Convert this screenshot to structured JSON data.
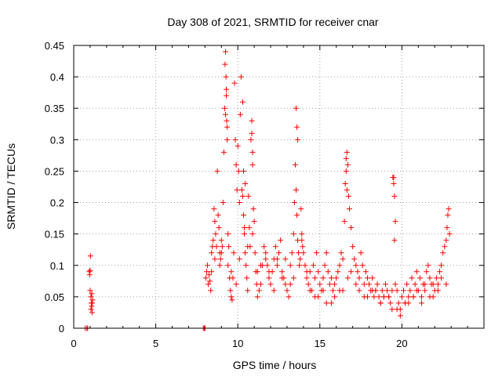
{
  "chart_data": {
    "type": "scatter",
    "title": "Day 308 of 2021, SRMTID for receiver cnar",
    "xlabel": "GPS time / hours",
    "ylabel": "SRMTID / TECUs",
    "xlim": [
      0,
      25
    ],
    "ylim": [
      0,
      0.45
    ],
    "xticks": [
      0,
      5,
      10,
      15,
      20
    ],
    "yticks": [
      0,
      0.05,
      0.1,
      0.15,
      0.2,
      0.25,
      0.3,
      0.35,
      0.4,
      0.45
    ],
    "xtick_labels": [
      "0",
      "5",
      "10",
      "15",
      "20"
    ],
    "ytick_labels": [
      "0",
      "0.05",
      "0.1",
      "0.15",
      "0.2",
      "0.25",
      "0.3",
      "0.35",
      "0.4",
      "0.45"
    ],
    "grid": true,
    "marker": "+",
    "color": "#ff0000",
    "series": [
      {
        "name": "SRMTID",
        "x": [
          0.7,
          0.8,
          0.85,
          0.95,
          0.97,
          1.0,
          1.02,
          1.05,
          1.07,
          1.1,
          1.12,
          1.15,
          1.0,
          1.05,
          1.1,
          1.13,
          7.9,
          7.95,
          8.0,
          8.05,
          8.1,
          8.15,
          8.2,
          8.25,
          8.3,
          8.35,
          8.4,
          8.45,
          8.5,
          8.55,
          8.6,
          8.65,
          8.7,
          8.75,
          8.8,
          8.85,
          8.9,
          8.95,
          9.0,
          9.05,
          9.1,
          9.15,
          9.2,
          9.22,
          9.25,
          9.28,
          9.3,
          9.32,
          9.35,
          9.4,
          9.45,
          9.5,
          9.55,
          9.6,
          9.65,
          9.7,
          9.75,
          9.8,
          9.85,
          9.9,
          9.95,
          10.0,
          10.05,
          10.1,
          10.15,
          10.2,
          10.25,
          10.3,
          10.35,
          10.4,
          10.45,
          10.5,
          10.55,
          10.6,
          10.65,
          10.7,
          10.75,
          10.8,
          10.85,
          10.9,
          10.95,
          11.0,
          11.05,
          11.1,
          11.15,
          11.2,
          11.3,
          11.4,
          11.5,
          11.6,
          11.7,
          11.8,
          11.9,
          12.0,
          12.1,
          12.2,
          12.3,
          12.4,
          12.5,
          12.6,
          12.7,
          12.8,
          12.9,
          13.0,
          13.1,
          13.2,
          13.3,
          13.4,
          13.45,
          13.5,
          13.55,
          13.6,
          13.65,
          13.7,
          13.75,
          13.8,
          13.85,
          13.9,
          13.95,
          14.0,
          14.1,
          14.2,
          14.3,
          14.4,
          14.5,
          14.6,
          14.7,
          14.8,
          14.9,
          15.0,
          15.1,
          15.2,
          15.3,
          15.4,
          15.5,
          15.6,
          15.7,
          15.8,
          15.9,
          16.0,
          16.1,
          16.2,
          16.3,
          16.4,
          16.5,
          16.55,
          16.6,
          16.65,
          16.7,
          16.75,
          16.8,
          16.9,
          17.0,
          17.1,
          17.2,
          17.3,
          17.4,
          17.5,
          17.6,
          17.7,
          17.8,
          17.9,
          18.0,
          18.1,
          18.2,
          18.3,
          18.4,
          18.5,
          18.6,
          18.7,
          18.8,
          18.9,
          19.0,
          19.1,
          19.2,
          19.3,
          19.4,
          19.45,
          19.5,
          19.55,
          19.6,
          19.7,
          19.8,
          19.9,
          20.0,
          20.1,
          20.2,
          20.3,
          20.4,
          20.5,
          20.6,
          20.7,
          20.8,
          20.9,
          21.0,
          21.1,
          21.2,
          21.3,
          21.4,
          21.5,
          21.6,
          21.7,
          21.8,
          21.9,
          22.0,
          22.1,
          22.2,
          22.3,
          22.4,
          22.5,
          22.6,
          22.7,
          22.75,
          22.8,
          22.85,
          22.9,
          9.25,
          9.3,
          9.35,
          10.3,
          10.35,
          10.45,
          10.85,
          10.9,
          13.55,
          13.6,
          13.65,
          16.6,
          16.65,
          19.5,
          19.55,
          19.6,
          8.6,
          9.0,
          9.6,
          10.1,
          10.6,
          11.2,
          11.7,
          12.2,
          12.7,
          13.2,
          14.2,
          14.7,
          15.2,
          15.7,
          16.2,
          16.7,
          17.2,
          17.7,
          18.2,
          18.7,
          19.2,
          19.7,
          20.2,
          20.7,
          21.2,
          21.7,
          22.2,
          22.7,
          8.4,
          8.9,
          9.4,
          9.9,
          10.4,
          10.9,
          11.4,
          11.9,
          12.4,
          12.9,
          13.4,
          13.9,
          14.4,
          14.9,
          15.4,
          15.9,
          16.4,
          16.9,
          17.4,
          17.9,
          18.4,
          18.9,
          19.4,
          19.9,
          20.4,
          20.9,
          21.4,
          21.9,
          22.4
        ],
        "y": [
          0.0,
          0.0,
          0.0,
          0.09,
          0.085,
          0.092,
          0.115,
          0.05,
          0.04,
          0.035,
          0.025,
          0.045,
          0.06,
          0.03,
          0.055,
          0.04,
          0.0,
          0.0,
          0.0,
          0.08,
          0.09,
          0.1,
          0.07,
          0.085,
          0.075,
          0.06,
          0.12,
          0.13,
          0.14,
          0.19,
          0.17,
          0.15,
          0.13,
          0.25,
          0.18,
          0.16,
          0.1,
          0.11,
          0.12,
          0.13,
          0.2,
          0.28,
          0.35,
          0.42,
          0.44,
          0.4,
          0.37,
          0.33,
          0.3,
          0.15,
          0.13,
          0.08,
          0.06,
          0.05,
          0.045,
          0.08,
          0.12,
          0.39,
          0.3,
          0.26,
          0.22,
          0.29,
          0.25,
          0.2,
          0.34,
          0.4,
          0.22,
          0.21,
          0.18,
          0.15,
          0.12,
          0.1,
          0.08,
          0.06,
          0.21,
          0.16,
          0.13,
          0.3,
          0.33,
          0.26,
          0.19,
          0.17,
          0.12,
          0.09,
          0.07,
          0.05,
          0.06,
          0.07,
          0.1,
          0.13,
          0.12,
          0.1,
          0.08,
          0.07,
          0.09,
          0.11,
          0.13,
          0.1,
          0.12,
          0.14,
          0.09,
          0.08,
          0.07,
          0.06,
          0.05,
          0.1,
          0.12,
          0.15,
          0.2,
          0.26,
          0.22,
          0.18,
          0.14,
          0.12,
          0.1,
          0.11,
          0.19,
          0.15,
          0.13,
          0.12,
          0.1,
          0.08,
          0.07,
          0.09,
          0.06,
          0.1,
          0.08,
          0.12,
          0.09,
          0.07,
          0.06,
          0.08,
          0.1,
          0.12,
          0.09,
          0.07,
          0.08,
          0.06,
          0.07,
          0.08,
          0.09,
          0.1,
          0.12,
          0.11,
          0.17,
          0.23,
          0.27,
          0.28,
          0.26,
          0.21,
          0.19,
          0.16,
          0.13,
          0.11,
          0.1,
          0.09,
          0.08,
          0.12,
          0.1,
          0.07,
          0.09,
          0.08,
          0.07,
          0.06,
          0.08,
          0.05,
          0.06,
          0.07,
          0.05,
          0.04,
          0.06,
          0.05,
          0.07,
          0.06,
          0.05,
          0.04,
          0.06,
          0.24,
          0.23,
          0.14,
          0.07,
          0.06,
          0.04,
          0.03,
          0.05,
          0.06,
          0.04,
          0.07,
          0.05,
          0.06,
          0.08,
          0.05,
          0.07,
          0.09,
          0.06,
          0.08,
          0.05,
          0.07,
          0.06,
          0.09,
          0.1,
          0.08,
          0.07,
          0.05,
          0.06,
          0.08,
          0.07,
          0.09,
          0.1,
          0.12,
          0.13,
          0.14,
          0.16,
          0.18,
          0.19,
          0.15,
          0.34,
          0.38,
          0.32,
          0.36,
          0.25,
          0.23,
          0.31,
          0.28,
          0.35,
          0.32,
          0.3,
          0.25,
          0.22,
          0.24,
          0.21,
          0.17,
          0.11,
          0.14,
          0.09,
          0.11,
          0.13,
          0.09,
          0.11,
          0.06,
          0.08,
          0.07,
          0.09,
          0.05,
          0.06,
          0.04,
          0.06,
          0.08,
          0.07,
          0.05,
          0.06,
          0.04,
          0.05,
          0.03,
          0.04,
          0.05,
          0.04,
          0.05,
          0.06,
          0.07,
          0.09,
          0.12,
          0.1,
          0.07,
          0.16,
          0.15,
          0.1,
          0.09,
          0.11,
          0.11,
          0.08,
          0.14,
          0.06,
          0.05,
          0.04,
          0.05,
          0.06,
          0.09,
          0.06,
          0.05,
          0.06,
          0.05,
          0.03,
          0.02,
          0.04,
          0.06,
          0.07,
          0.07,
          0.08
        ]
      }
    ]
  }
}
